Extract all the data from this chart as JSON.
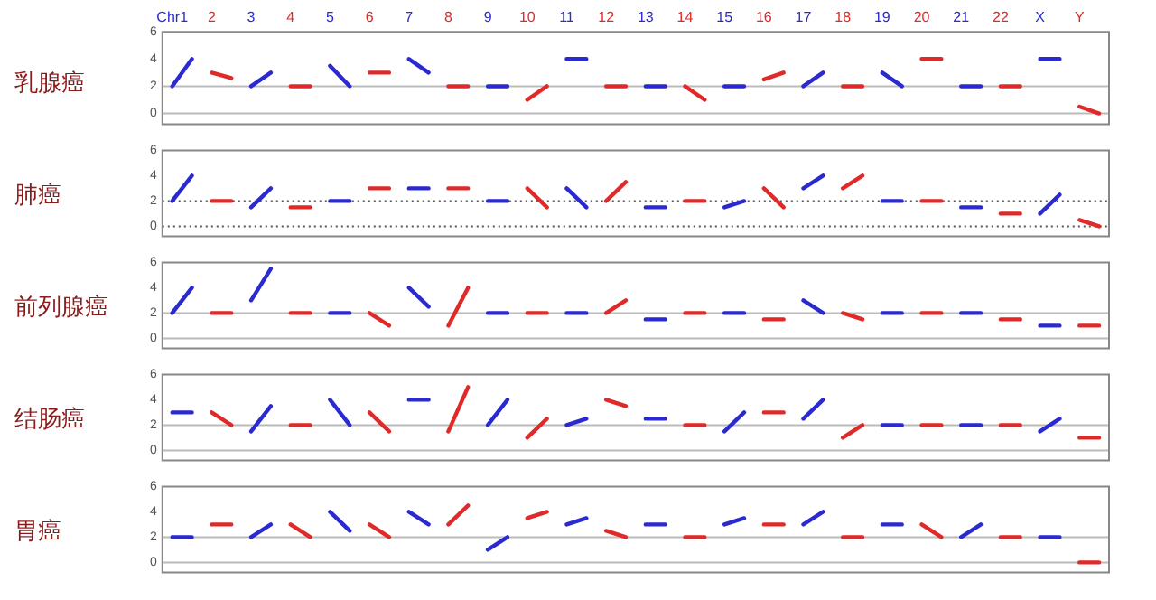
{
  "chart_data": [
    {
      "type": "line",
      "ylabel": "乳腺癌",
      "categories": [
        "Chr1",
        null,
        "2",
        null,
        "3",
        null,
        "4",
        null,
        "5",
        null,
        "6",
        null,
        "7",
        null,
        "8",
        null,
        "9",
        null,
        "10",
        null,
        "11",
        null,
        "12",
        null,
        "13",
        null,
        "14",
        null,
        "15",
        null,
        "16",
        null,
        "17",
        null,
        "18",
        null,
        "19",
        null,
        "20",
        null,
        "21",
        null,
        "22",
        null,
        "X",
        null,
        "Y",
        null
      ],
      "ylim": [
        -0.8,
        6
      ],
      "yticks": [
        0,
        2,
        4,
        6
      ],
      "grid": false,
      "legend": false,
      "marker": "none",
      "ref_lines": [
        {
          "axis": "y",
          "value": 2,
          "color": "#bbbbbb",
          "line_style": "solid"
        },
        {
          "axis": "y",
          "value": 0,
          "color": "#bbbbbb",
          "line_style": "solid"
        }
      ],
      "series": [
        {
          "color": "#2a2ad0",
          "values": [
            2,
            4,
            null,
            null,
            2,
            3,
            null,
            null,
            3.5,
            2,
            null,
            null,
            4,
            3,
            null,
            null,
            2,
            2,
            null,
            null,
            4,
            4,
            null,
            null,
            2,
            2,
            null,
            null,
            2,
            2,
            null,
            null,
            2,
            3,
            null,
            null,
            3,
            2,
            null,
            null,
            2,
            2,
            null,
            null,
            4,
            4,
            null,
            null
          ]
        },
        {
          "color": "#e02a2a",
          "values": [
            null,
            null,
            3,
            2.6,
            null,
            null,
            2,
            2,
            null,
            null,
            3,
            3,
            null,
            null,
            2,
            2,
            null,
            null,
            1,
            2,
            null,
            null,
            2,
            2,
            null,
            null,
            2,
            1,
            null,
            null,
            2.5,
            3,
            null,
            null,
            2,
            2,
            null,
            null,
            4,
            4,
            null,
            null,
            2,
            2,
            null,
            null,
            0.5,
            0
          ]
        }
      ]
    },
    {
      "type": "line",
      "ylabel": "肺癌",
      "categories": [
        null,
        null,
        null,
        null,
        null,
        null,
        null,
        null,
        null,
        null,
        null,
        null,
        null,
        null,
        null,
        null,
        null,
        null,
        null,
        null,
        null,
        null,
        null,
        null,
        null,
        null,
        null,
        null,
        null,
        null,
        null,
        null,
        null,
        null,
        null,
        null,
        null,
        null,
        null,
        null,
        null,
        null,
        null,
        null,
        null,
        null,
        null,
        null
      ],
      "tick_labels": "y",
      "ylim": [
        -0.8,
        6
      ],
      "yticks": [
        0,
        2,
        4,
        6
      ],
      "grid": false,
      "legend": false,
      "marker": "none",
      "ref_lines": [
        {
          "axis": "y",
          "value": 2,
          "color": "#555555",
          "line_style": "dotted"
        },
        {
          "axis": "y",
          "value": 0,
          "color": "#555555",
          "line_style": "dotted"
        }
      ],
      "series": [
        {
          "color": "#2a2ad0",
          "values": [
            2,
            4,
            null,
            null,
            1.5,
            3,
            null,
            null,
            2,
            2,
            null,
            null,
            3,
            3,
            null,
            null,
            2,
            2,
            null,
            null,
            3,
            1.5,
            null,
            null,
            1.5,
            1.5,
            null,
            null,
            1.5,
            2,
            null,
            null,
            3,
            4,
            null,
            null,
            2,
            2,
            null,
            null,
            1.5,
            1.5,
            null,
            null,
            1,
            2.5,
            null,
            null
          ]
        },
        {
          "color": "#e02a2a",
          "values": [
            null,
            null,
            2,
            2,
            null,
            null,
            1.5,
            1.5,
            null,
            null,
            3,
            3,
            null,
            null,
            3,
            3,
            null,
            null,
            3,
            1.5,
            null,
            null,
            2,
            3.5,
            null,
            null,
            2,
            2,
            null,
            null,
            3,
            1.5,
            null,
            null,
            3,
            4,
            null,
            null,
            2,
            2,
            null,
            null,
            1,
            1,
            null,
            null,
            0.5,
            0
          ]
        }
      ]
    },
    {
      "type": "line",
      "ylabel": "前列腺癌",
      "categories": [
        null,
        null,
        null,
        null,
        null,
        null,
        null,
        null,
        null,
        null,
        null,
        null,
        null,
        null,
        null,
        null,
        null,
        null,
        null,
        null,
        null,
        null,
        null,
        null,
        null,
        null,
        null,
        null,
        null,
        null,
        null,
        null,
        null,
        null,
        null,
        null,
        null,
        null,
        null,
        null,
        null,
        null,
        null,
        null,
        null,
        null,
        null,
        null
      ],
      "tick_labels": "y",
      "ylim": [
        -0.8,
        6
      ],
      "yticks": [
        0,
        2,
        4,
        6
      ],
      "grid": false,
      "legend": false,
      "marker": "none",
      "ref_lines": [
        {
          "axis": "y",
          "value": 2,
          "color": "#bbbbbb",
          "line_style": "solid"
        },
        {
          "axis": "y",
          "value": 0,
          "color": "#bbbbbb",
          "line_style": "solid"
        }
      ],
      "series": [
        {
          "color": "#2a2ad0",
          "values": [
            2,
            4,
            null,
            null,
            3,
            5.5,
            null,
            null,
            2,
            2,
            null,
            null,
            4,
            2.5,
            null,
            null,
            2,
            2,
            null,
            null,
            2,
            2,
            null,
            null,
            1.5,
            1.5,
            null,
            null,
            2,
            2,
            null,
            null,
            3,
            2,
            null,
            null,
            2,
            2,
            null,
            null,
            2,
            2,
            null,
            null,
            1,
            1,
            null,
            null
          ]
        },
        {
          "color": "#e02a2a",
          "values": [
            null,
            null,
            2,
            2,
            null,
            null,
            2,
            2,
            null,
            null,
            2,
            1,
            null,
            null,
            1,
            4,
            null,
            null,
            2,
            2,
            null,
            null,
            2,
            3,
            null,
            null,
            2,
            2,
            null,
            null,
            1.5,
            1.5,
            null,
            null,
            2,
            1.5,
            null,
            null,
            2,
            2,
            null,
            null,
            1.5,
            1.5,
            null,
            null,
            1,
            1
          ]
        }
      ]
    },
    {
      "type": "line",
      "ylabel": "结肠癌",
      "categories": [
        null,
        null,
        null,
        null,
        null,
        null,
        null,
        null,
        null,
        null,
        null,
        null,
        null,
        null,
        null,
        null,
        null,
        null,
        null,
        null,
        null,
        null,
        null,
        null,
        null,
        null,
        null,
        null,
        null,
        null,
        null,
        null,
        null,
        null,
        null,
        null,
        null,
        null,
        null,
        null,
        null,
        null,
        null,
        null,
        null,
        null,
        null,
        null
      ],
      "tick_labels": "y",
      "ylim": [
        -0.8,
        6
      ],
      "yticks": [
        0,
        2,
        4,
        6
      ],
      "grid": false,
      "legend": false,
      "marker": "none",
      "ref_lines": [
        {
          "axis": "y",
          "value": 2,
          "color": "#bbbbbb",
          "line_style": "solid"
        },
        {
          "axis": "y",
          "value": 0,
          "color": "#bbbbbb",
          "line_style": "solid"
        }
      ],
      "series": [
        {
          "color": "#2a2ad0",
          "values": [
            3,
            3,
            null,
            null,
            1.5,
            3.5,
            null,
            null,
            4,
            2,
            null,
            null,
            4,
            4,
            null,
            null,
            2,
            4,
            null,
            null,
            2,
            2.5,
            null,
            null,
            2.5,
            2.5,
            null,
            null,
            1.5,
            3,
            null,
            null,
            2.5,
            4,
            null,
            null,
            2,
            2,
            null,
            null,
            2,
            2,
            null,
            null,
            1.5,
            2.5,
            null,
            null
          ]
        },
        {
          "color": "#e02a2a",
          "values": [
            null,
            null,
            3,
            2,
            null,
            null,
            2,
            2,
            null,
            null,
            3,
            1.5,
            null,
            null,
            1.5,
            5,
            null,
            null,
            1,
            2.5,
            null,
            null,
            4,
            3.5,
            null,
            null,
            2,
            2,
            null,
            null,
            3,
            3,
            null,
            null,
            1,
            2,
            null,
            null,
            2,
            2,
            null,
            null,
            2,
            2,
            null,
            null,
            1,
            1
          ]
        }
      ]
    },
    {
      "type": "line",
      "ylabel": "胃癌",
      "categories": [
        null,
        null,
        null,
        null,
        null,
        null,
        null,
        null,
        null,
        null,
        null,
        null,
        null,
        null,
        null,
        null,
        null,
        null,
        null,
        null,
        null,
        null,
        null,
        null,
        null,
        null,
        null,
        null,
        null,
        null,
        null,
        null,
        null,
        null,
        null,
        null,
        null,
        null,
        null,
        null,
        null,
        null,
        null,
        null,
        null,
        null,
        null,
        null
      ],
      "tick_labels": "y",
      "ylim": [
        -0.8,
        6
      ],
      "yticks": [
        0,
        2,
        4,
        6
      ],
      "grid": false,
      "legend": false,
      "marker": "none",
      "ref_lines": [
        {
          "axis": "y",
          "value": 2,
          "color": "#bbbbbb",
          "line_style": "solid"
        },
        {
          "axis": "y",
          "value": 0,
          "color": "#bbbbbb",
          "line_style": "solid"
        }
      ],
      "series": [
        {
          "color": "#2a2ad0",
          "values": [
            2,
            2,
            null,
            null,
            2,
            3,
            null,
            null,
            4,
            2.5,
            null,
            null,
            4,
            3,
            null,
            null,
            1,
            2,
            null,
            null,
            3,
            3.5,
            null,
            null,
            3,
            3,
            null,
            null,
            3,
            3.5,
            null,
            null,
            3,
            4,
            null,
            null,
            3,
            3,
            null,
            null,
            2,
            3,
            null,
            null,
            2,
            2,
            null,
            null
          ]
        },
        {
          "color": "#e02a2a",
          "values": [
            null,
            null,
            3,
            3,
            null,
            null,
            3,
            2,
            null,
            null,
            3,
            2,
            null,
            null,
            3,
            4.5,
            null,
            null,
            3.5,
            4,
            null,
            null,
            2.5,
            2,
            null,
            null,
            2,
            2,
            null,
            null,
            3,
            3,
            null,
            null,
            2,
            2,
            null,
            null,
            3,
            2,
            null,
            null,
            2,
            2,
            null,
            null,
            0,
            0
          ]
        }
      ]
    }
  ]
}
